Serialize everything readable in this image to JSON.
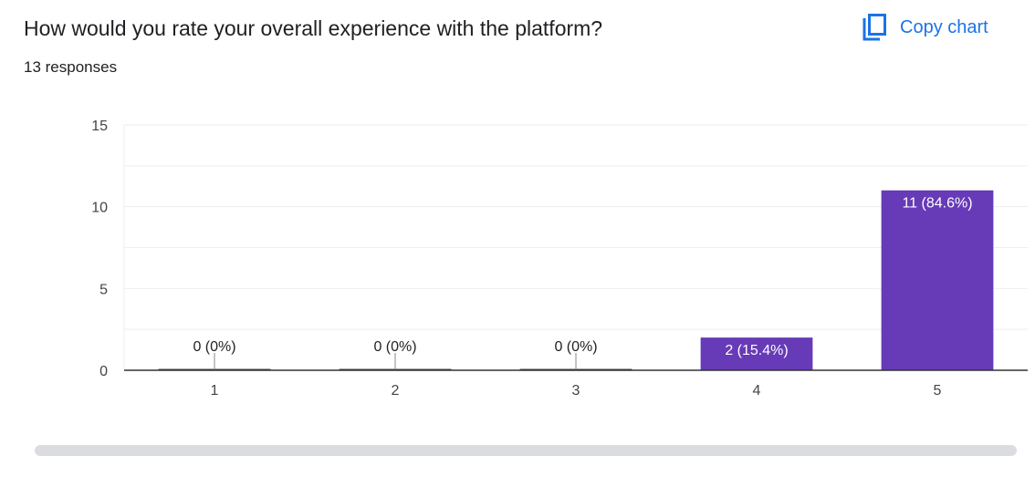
{
  "header": {
    "title": "How would you rate your overall experience with the platform?",
    "responses": "13 responses",
    "copy_label": "Copy chart",
    "copy_icon": "copy-icon"
  },
  "colors": {
    "bar": "#673ab7",
    "accent": "#1a73e8",
    "grid": "#eeeeee",
    "axis": "#333333"
  },
  "chart_data": {
    "type": "bar",
    "categories": [
      "1",
      "2",
      "3",
      "4",
      "5"
    ],
    "values": [
      0,
      0,
      0,
      2,
      11
    ],
    "data_labels": [
      "0 (0%)",
      "0 (0%)",
      "0 (0%)",
      "2 (15.4%)",
      "11 (84.6%)"
    ],
    "title": "",
    "xlabel": "",
    "ylabel": "",
    "ylim": [
      0,
      15
    ],
    "yticks": [
      0,
      5,
      10,
      15
    ],
    "grid": true,
    "legend": "none"
  }
}
